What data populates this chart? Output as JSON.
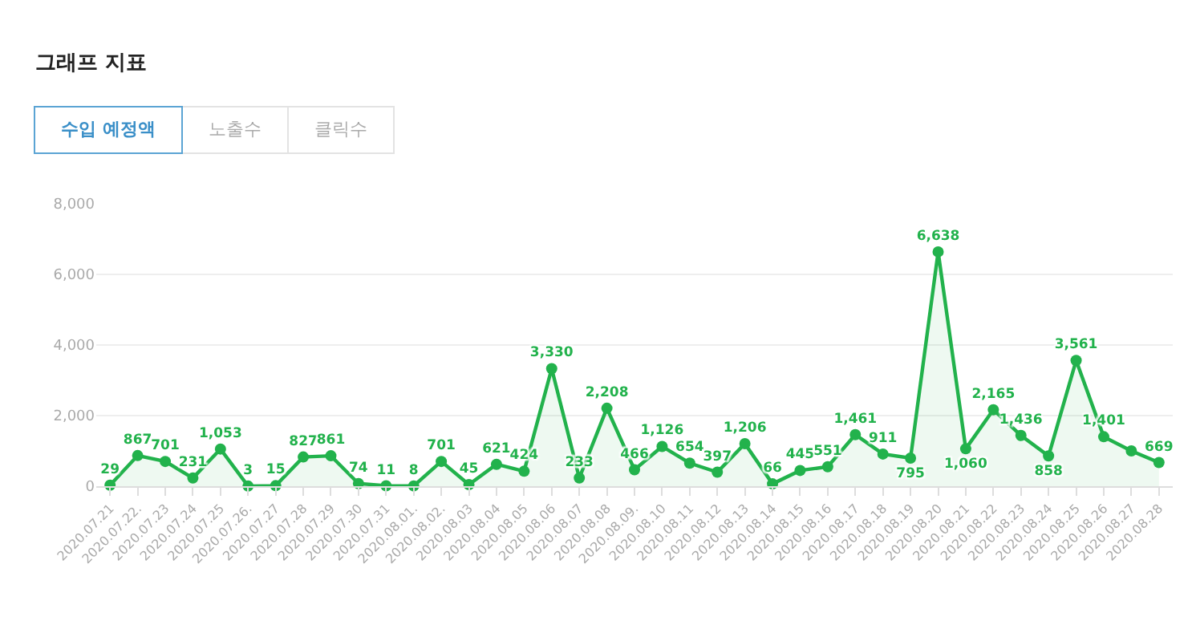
{
  "chart_data": {
    "type": "area",
    "title": "그래프 지표",
    "annotations": [
      "수입 예정액",
      "노출수",
      "클릭수"
    ],
    "categories": [
      "2020.07.21",
      "2020.07.22.",
      "2020.07.23",
      "2020.07.24",
      "2020.07.25",
      "2020.07.26.",
      "2020.07.27",
      "2020.07.28",
      "2020.07.29",
      "2020.07.30",
      "2020.07.31",
      "2020.08.01.",
      "2020.08.02.",
      "2020.08.03",
      "2020.08.04",
      "2020.08.05",
      "2020.08.06",
      "2020.08.07",
      "2020.08.08",
      "2020.08.09.",
      "2020.08.10",
      "2020.08.11",
      "2020.08.12",
      "2020.08.13",
      "2020.08.14",
      "2020.08.15",
      "2020.08.16",
      "2020.08.17",
      "2020.08.18",
      "2020.08.19",
      "2020.08.20",
      "2020.08.21",
      "2020.08.22",
      "2020.08.23",
      "2020.08.24",
      "2020.08.25",
      "2020.08.26",
      "2020.08.27",
      "2020.08.28"
    ],
    "series": [
      {
        "color": "#22b24c",
        "values": [
          29,
          867,
          701,
          231,
          1053,
          3,
          15,
          827,
          861,
          74,
          11,
          8,
          701,
          45,
          621,
          424,
          3330,
          233,
          2208,
          466,
          1126,
          654,
          397,
          1206,
          66,
          445,
          551,
          1461,
          911,
          795,
          6638,
          1060,
          2165,
          1436,
          858,
          3561,
          1401,
          1000,
          669
        ],
        "value_labels": [
          "29",
          "867",
          "701",
          "231",
          "1,053",
          "3",
          "15",
          "827",
          "861",
          "74",
          "11",
          "8",
          "701",
          "45",
          "621",
          "424",
          "3,330",
          "233",
          "2,208",
          "466",
          "1,126",
          "654",
          "397",
          "1,206",
          "66",
          "445",
          "551",
          "1,461",
          "911",
          "795",
          "6,638",
          "1,060",
          "2,165",
          "1,436",
          "858",
          "3,561",
          "1,401",
          null,
          "669"
        ]
      }
    ],
    "ylim": [
      0,
      8000
    ],
    "yticks": [
      0,
      {
        "value": 2000,
        "label": "2,000"
      },
      {
        "value": 4000,
        "label": "4,000"
      },
      {
        "value": 6000,
        "label": "6,000"
      },
      {
        "value": 8000,
        "label": "8,000"
      }
    ],
    "grid": "y",
    "legend": false,
    "marker": "circle",
    "line_style": "solid"
  }
}
